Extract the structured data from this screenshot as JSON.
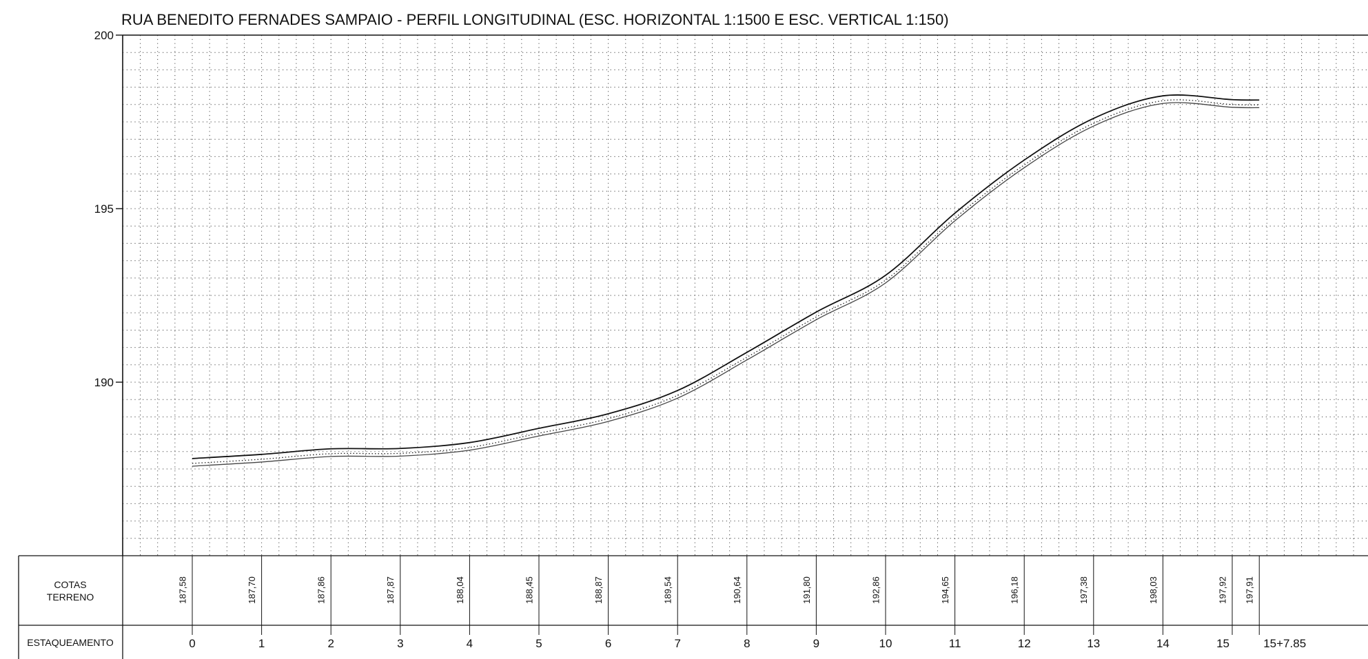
{
  "title": "RUA BENEDITO FERNADES SAMPAIO - PERFIL LONGITUDINAL (ESC. HORIZONTAL 1:1500 E ESC. VERTICAL 1:150)",
  "table": {
    "row1_label_line1": "COTAS",
    "row1_label_line2": "TERRENO",
    "row2_label": "ESTAQUEAMENTO"
  },
  "chart_data": {
    "type": "line",
    "title": "RUA BENEDITO FERNADES SAMPAIO - PERFIL LONGITUDINAL (ESC. HORIZONTAL 1:1500 E ESC. VERTICAL 1:150)",
    "xlabel": "",
    "ylabel": "",
    "ylim": [
      185,
      200
    ],
    "yticks": [
      190,
      195,
      200
    ],
    "grid": true,
    "stations": [
      {
        "x": 0,
        "label": "0",
        "cota": "187,58",
        "ground": 187.58
      },
      {
        "x": 1,
        "label": "1",
        "cota": "187,70",
        "ground": 187.7
      },
      {
        "x": 2,
        "label": "2",
        "cota": "187,86",
        "ground": 187.86
      },
      {
        "x": 3,
        "label": "3",
        "cota": "187,87",
        "ground": 187.87
      },
      {
        "x": 4,
        "label": "4",
        "cota": "188,04",
        "ground": 188.04
      },
      {
        "x": 5,
        "label": "5",
        "cota": "188,45",
        "ground": 188.45
      },
      {
        "x": 6,
        "label": "6",
        "cota": "188,87",
        "ground": 188.87
      },
      {
        "x": 7,
        "label": "7",
        "cota": "189,54",
        "ground": 189.54
      },
      {
        "x": 8,
        "label": "8",
        "cota": "190,64",
        "ground": 190.64
      },
      {
        "x": 9,
        "label": "9",
        "cota": "191,80",
        "ground": 191.8
      },
      {
        "x": 10,
        "label": "10",
        "cota": "192,86",
        "ground": 192.86
      },
      {
        "x": 11,
        "label": "11",
        "cota": "194,65",
        "ground": 194.65
      },
      {
        "x": 12,
        "label": "12",
        "cota": "196,18",
        "ground": 196.18
      },
      {
        "x": 13,
        "label": "13",
        "cota": "197,38",
        "ground": 197.38
      },
      {
        "x": 14,
        "label": "14",
        "cota": "198,03",
        "ground": 198.03
      },
      {
        "x": 15,
        "label": "15",
        "cota": "197,92",
        "ground": 197.92
      },
      {
        "x": 15.39,
        "label": "15+7.85",
        "cota": "197,91",
        "ground": 197.91
      }
    ],
    "series": [
      {
        "values": [
          187.8,
          187.92,
          188.08,
          188.09,
          188.26,
          188.67,
          189.09,
          189.76,
          190.86,
          192.02,
          193.08,
          194.87,
          196.4,
          197.6,
          198.25,
          198.14,
          198.13
        ]
      },
      {
        "values": [
          187.66,
          187.78,
          187.94,
          187.95,
          188.12,
          188.53,
          188.95,
          189.62,
          190.72,
          191.88,
          192.94,
          194.73,
          196.26,
          197.46,
          198.11,
          198.0,
          197.99
        ]
      },
      {
        "values": [
          187.58,
          187.7,
          187.86,
          187.87,
          188.04,
          188.45,
          188.87,
          189.54,
          190.64,
          191.8,
          192.86,
          194.65,
          196.18,
          197.38,
          198.03,
          197.92,
          197.91
        ]
      }
    ],
    "colors": {
      "line": "#111111",
      "grid": "#444444"
    }
  }
}
